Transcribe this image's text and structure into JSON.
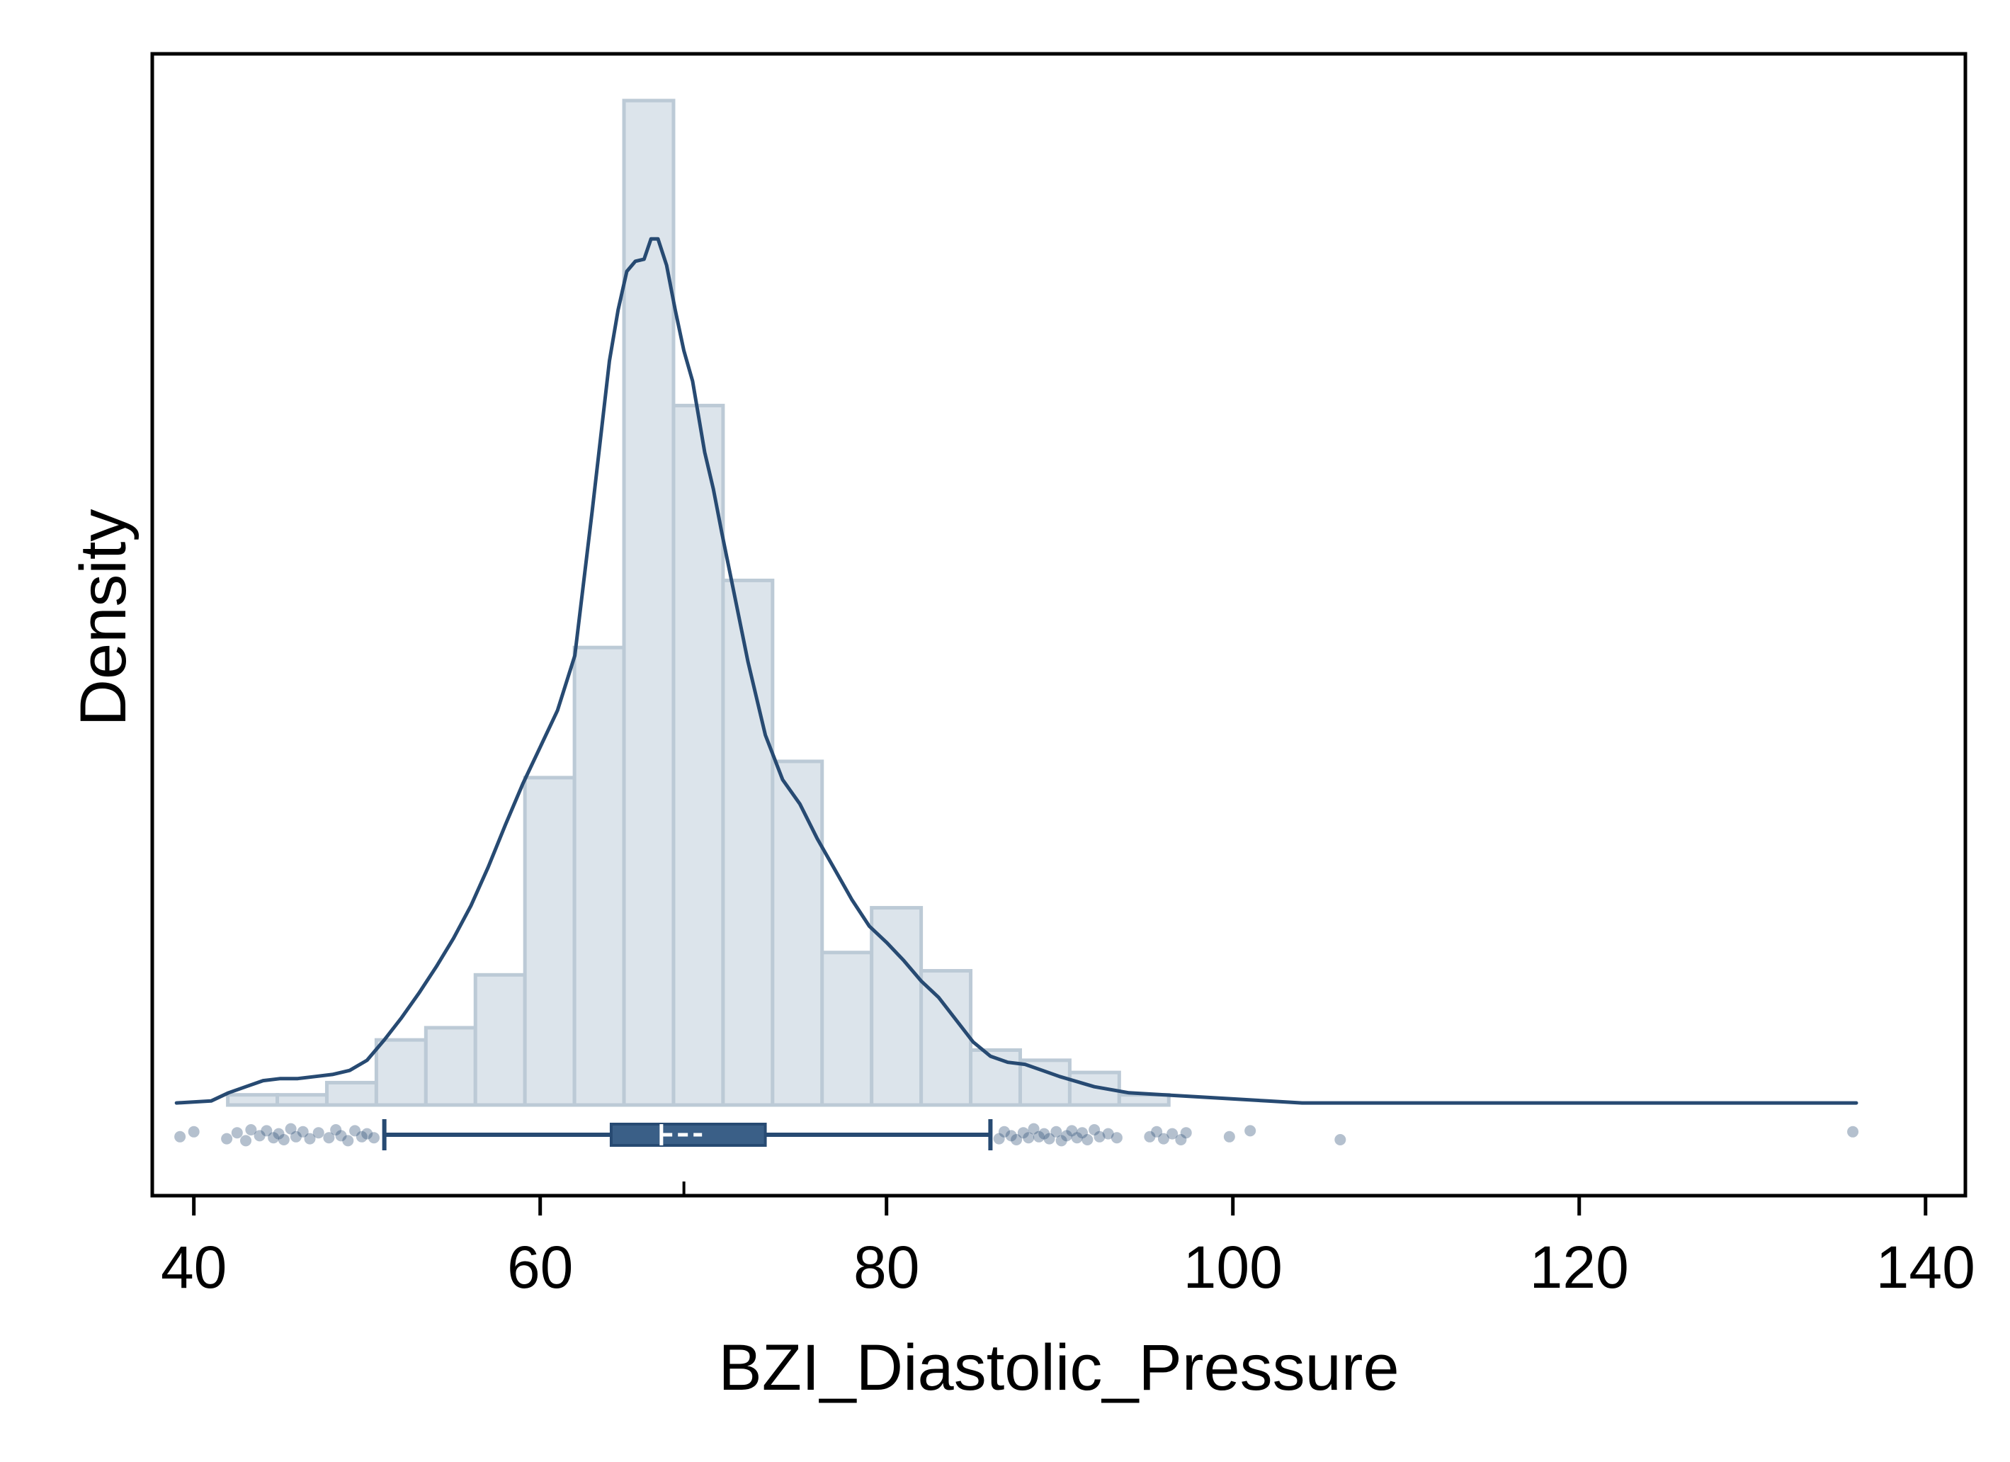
{
  "chart_data": {
    "type": "histogram",
    "xlabel": "BZI_Diastolic_Pressure",
    "ylabel": "Density",
    "xlim": [
      37.6,
      142.3
    ],
    "x_ticks": [
      40,
      60,
      80,
      100,
      120,
      140
    ],
    "x_tick_labels": [
      "40",
      "60",
      "80",
      "100",
      "120",
      "140"
    ],
    "y_ticks_shown": false,
    "grid": false,
    "legend": "none",
    "colors": {
      "bar_fill": "#dce4eb",
      "bar_stroke": "#bccad6",
      "line": "#274a72",
      "box": "#3a5f87",
      "point": "#274a72"
    },
    "histogram": {
      "bin_width": 2.86,
      "bins": [
        {
          "x0": 41.96,
          "density": 0.0005
        },
        {
          "x0": 44.82,
          "density": 0.0005
        },
        {
          "x0": 47.68,
          "density": 0.0011
        },
        {
          "x0": 50.54,
          "density": 0.0032
        },
        {
          "x0": 53.4,
          "density": 0.0038
        },
        {
          "x0": 56.26,
          "density": 0.0064
        },
        {
          "x0": 59.12,
          "density": 0.0161
        },
        {
          "x0": 61.98,
          "density": 0.0225
        },
        {
          "x0": 64.84,
          "density": 0.0494
        },
        {
          "x0": 67.7,
          "density": 0.0344
        },
        {
          "x0": 70.56,
          "density": 0.0258
        },
        {
          "x0": 73.42,
          "density": 0.0169
        },
        {
          "x0": 76.28,
          "density": 0.0075
        },
        {
          "x0": 79.14,
          "density": 0.0097
        },
        {
          "x0": 82.0,
          "density": 0.0066
        },
        {
          "x0": 84.86,
          "density": 0.0027
        },
        {
          "x0": 87.72,
          "density": 0.0022
        },
        {
          "x0": 90.58,
          "density": 0.0016
        },
        {
          "x0": 93.44,
          "density": 0.0005
        }
      ]
    },
    "density_curve": {
      "x": [
        39,
        41,
        42,
        43,
        44,
        45,
        46,
        47,
        48,
        49,
        50,
        51,
        52,
        53,
        54,
        55,
        56,
        57,
        58,
        59,
        60,
        61,
        62,
        63,
        64,
        64.5,
        65,
        65.5,
        66,
        66.4,
        66.8,
        67.3,
        67.8,
        68.3,
        68.8,
        69.5,
        70,
        70.5,
        71,
        72,
        73,
        74,
        75,
        76,
        77,
        78,
        79,
        80,
        81,
        82,
        83,
        84,
        85,
        86,
        87,
        88,
        89,
        90,
        92,
        94,
        96,
        98,
        100,
        102,
        104,
        106,
        108,
        110,
        115,
        120,
        125,
        130,
        133,
        136
      ],
      "y": [
        0.0001,
        0.0002,
        0.0006,
        0.0009,
        0.0012,
        0.0013,
        0.0013,
        0.0014,
        0.0015,
        0.0017,
        0.0022,
        0.0032,
        0.0043,
        0.0055,
        0.0068,
        0.0082,
        0.0098,
        0.0117,
        0.0138,
        0.0158,
        0.0176,
        0.0194,
        0.0221,
        0.0292,
        0.0366,
        0.0391,
        0.041,
        0.0415,
        0.0416,
        0.0426,
        0.0426,
        0.0413,
        0.0391,
        0.0371,
        0.0356,
        0.0321,
        0.0303,
        0.0281,
        0.026,
        0.0218,
        0.0182,
        0.016,
        0.0148,
        0.0131,
        0.0116,
        0.0101,
        0.0088,
        0.008,
        0.0071,
        0.0061,
        0.0053,
        0.0042,
        0.0031,
        0.0024,
        0.0021,
        0.002,
        0.0017,
        0.0014,
        0.0009,
        0.0006,
        0.0005,
        0.0004,
        0.0003,
        0.0002,
        0.0001,
        0.0001,
        0.0001,
        0.0001,
        0.0001,
        0.0001,
        0.0001,
        0.0001,
        0.0001,
        0.0001
      ]
    },
    "box_plot": {
      "whisker_low": 51,
      "q1": 64.1,
      "median": 67,
      "mean": 68.2,
      "q3": 73,
      "whisker_high": 86,
      "axis_mark": 68.3
    },
    "outliers": {
      "x": [
        39.2,
        40,
        41.9,
        42.5,
        43,
        43.3,
        43.8,
        44.2,
        44.6,
        44.9,
        45.2,
        45.6,
        45.9,
        46.3,
        46.7,
        47.2,
        47.8,
        48.2,
        48.5,
        48.9,
        49.3,
        49.7,
        50,
        50.4,
        86.5,
        86.8,
        87.2,
        87.5,
        87.9,
        88.2,
        88.5,
        88.8,
        89.1,
        89.4,
        89.8,
        90.1,
        90.4,
        90.7,
        91,
        91.3,
        91.6,
        92,
        92.3,
        92.8,
        93.3,
        95.2,
        95.6,
        96,
        96.5,
        97,
        97.3,
        99.8,
        101,
        106.2,
        135.8
      ],
      "jitter": [
        0.2,
        -0.3,
        0.4,
        -0.2,
        0.6,
        -0.5,
        0.1,
        -0.4,
        0.3,
        -0.1,
        0.5,
        -0.6,
        0.2,
        -0.3,
        0.4,
        -0.2,
        0.3,
        -0.5,
        0.1,
        0.6,
        -0.4,
        0.2,
        -0.1,
        0.3,
        0.4,
        -0.3,
        0.1,
        0.5,
        -0.2,
        0.3,
        -0.6,
        0.2,
        -0.1,
        0.4,
        -0.3,
        0.6,
        0.1,
        -0.4,
        0.3,
        -0.2,
        0.5,
        -0.5,
        0.2,
        -0.1,
        0.3,
        0.2,
        -0.3,
        0.4,
        -0.1,
        0.5,
        -0.2,
        0.2,
        -0.4,
        0.5,
        -0.3
      ]
    }
  }
}
